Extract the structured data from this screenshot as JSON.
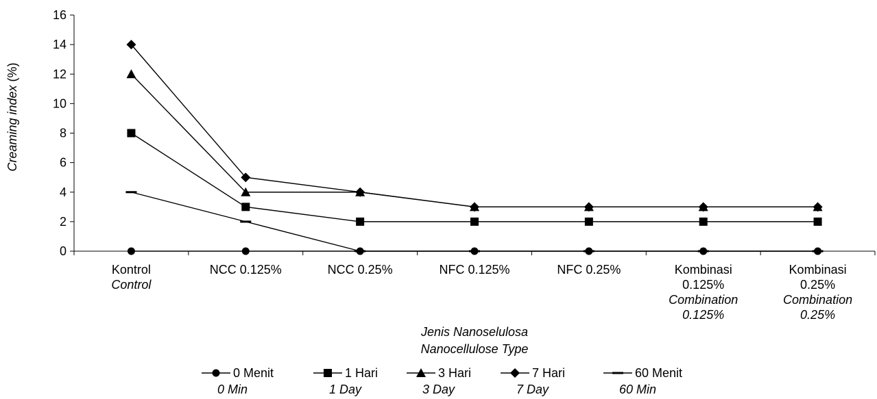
{
  "chart_data": {
    "type": "line",
    "title": "",
    "ylabel_italic": "Creaming index",
    "ylabel_unit": " (%)",
    "xlabel": [
      "Jenis Nanoselulosa",
      "Nanocellulose Type"
    ],
    "ylim": [
      0,
      16
    ],
    "yticks": [
      0,
      2,
      4,
      6,
      8,
      10,
      12,
      14,
      16
    ],
    "grid": false,
    "legend_position": "bottom",
    "categories": [
      {
        "lines": [
          "Kontrol"
        ],
        "italic": [
          "Control"
        ]
      },
      {
        "lines": [
          "NCC 0.125%"
        ],
        "italic": []
      },
      {
        "lines": [
          "NCC 0.25%"
        ],
        "italic": []
      },
      {
        "lines": [
          "NFC 0.125%"
        ],
        "italic": []
      },
      {
        "lines": [
          "NFC 0.25%"
        ],
        "italic": []
      },
      {
        "lines": [
          "Kombinasi",
          "0.125%"
        ],
        "italic": [
          "Combination",
          "0.125%"
        ]
      },
      {
        "lines": [
          "Kombinasi",
          "0.25%"
        ],
        "italic": [
          "Combination",
          "0.25%"
        ]
      }
    ],
    "series": [
      {
        "name": "0 Menit",
        "name_en": "0 Min",
        "marker": "circle",
        "values": [
          0,
          0,
          0,
          0,
          0,
          0,
          0
        ]
      },
      {
        "name": "1 Hari",
        "name_en": "1 Day",
        "marker": "square",
        "values": [
          8,
          3,
          2,
          2,
          2,
          2,
          2
        ]
      },
      {
        "name": "3 Hari",
        "name_en": "3 Day",
        "marker": "triangle",
        "values": [
          12,
          4,
          4,
          3,
          3,
          3,
          3
        ]
      },
      {
        "name": "7 Hari",
        "name_en": "7 Day",
        "marker": "diamond",
        "values": [
          14,
          5,
          4,
          3,
          3,
          3,
          3
        ]
      },
      {
        "name": "60 Menit",
        "name_en": "60 Min",
        "marker": "dash",
        "values": [
          4,
          2,
          0,
          0,
          0,
          0,
          0
        ]
      }
    ],
    "colors": {
      "line": "#000000",
      "axis": "#000000"
    }
  }
}
